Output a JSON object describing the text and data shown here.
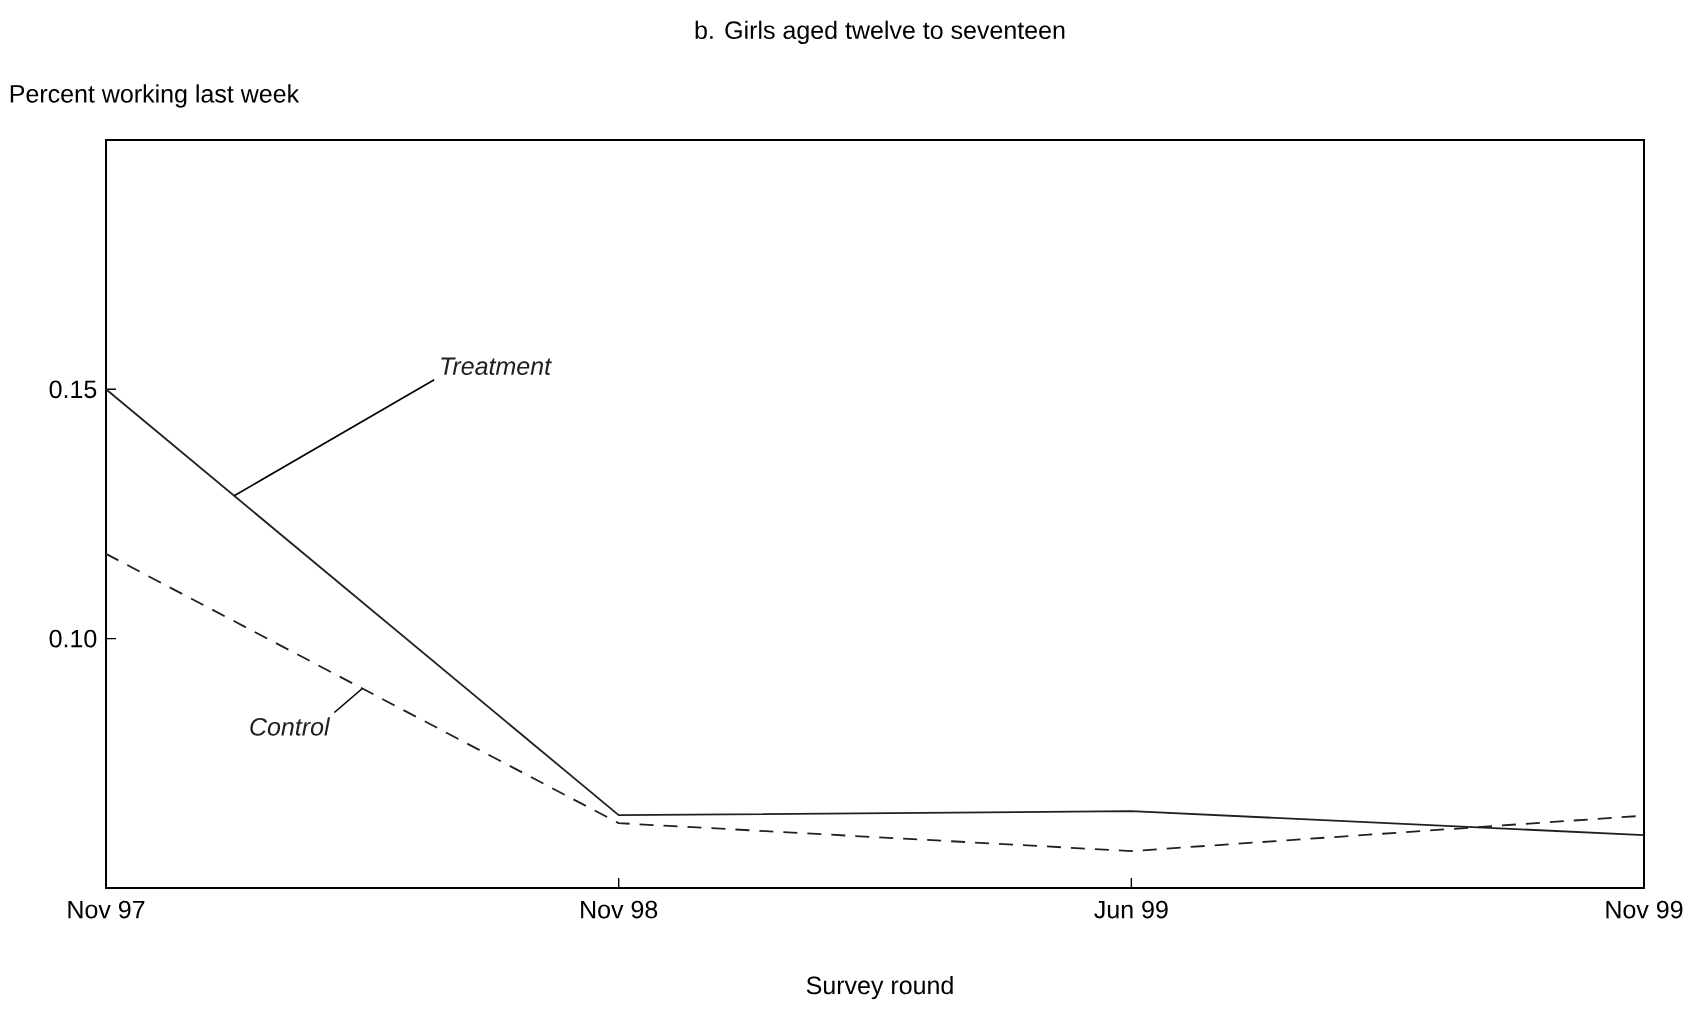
{
  "chart_data": {
    "type": "line",
    "title": "b. Girls aged twelve to seventeen",
    "xlabel": "Survey round",
    "ylabel": "Percent working last week",
    "categories": [
      "Nov 97",
      "Nov 98",
      "Jun 99",
      "Nov 99"
    ],
    "series": [
      {
        "name": "Treatment",
        "color": "#231f20",
        "line_style": "solid",
        "values": [
          0.15,
          0.0646,
          0.0654,
          0.0606
        ]
      },
      {
        "name": "Control",
        "color": "#231f20",
        "line_style": "dashed",
        "values": [
          0.117,
          0.063,
          0.0574,
          0.0645
        ]
      }
    ],
    "ylim": [
      0.05,
      0.2
    ],
    "yticks": [
      {
        "value": 0.1,
        "label": "0.10"
      },
      {
        "value": 0.15,
        "label": "0.15"
      }
    ],
    "grid": false,
    "legend": false,
    "marker": "none"
  }
}
